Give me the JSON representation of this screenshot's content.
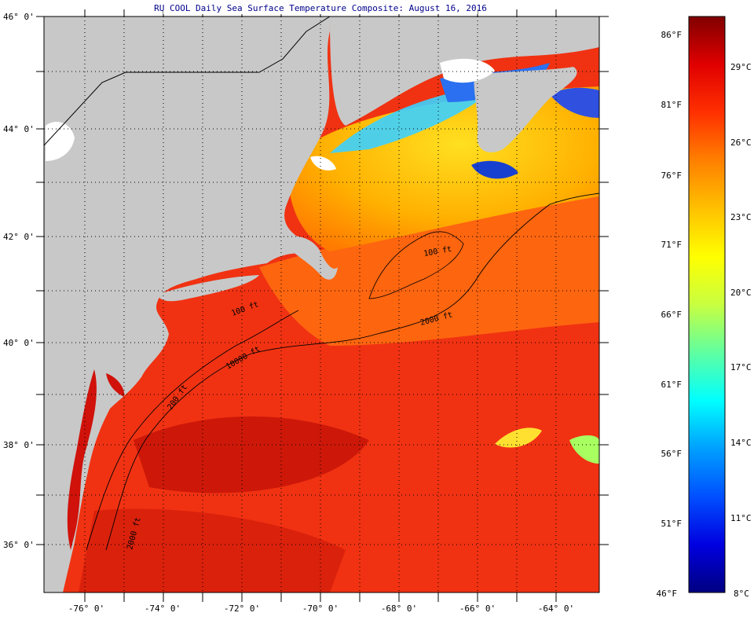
{
  "title": "RU COOL Daily Sea Surface Temperature Composite: August 16, 2016",
  "lat_labels": [
    "46° 0'",
    "44° 0'",
    "42° 0'",
    "40° 0'",
    "38° 0'",
    "36° 0'"
  ],
  "lon_labels": [
    "-76° 0'",
    "-74° 0'",
    "-72° 0'",
    "-70° 0'",
    "-68° 0'",
    "-66° 0'",
    "-64° 0'"
  ],
  "contour_labels": [
    "100 ft",
    "200 ft",
    "2000 ft",
    "10000 ft",
    "100 ft",
    "2000 ft"
  ],
  "colorbar": {
    "fahrenheit": [
      "86°F",
      "81°F",
      "76°F",
      "71°F",
      "66°F",
      "61°F",
      "56°F",
      "51°F",
      "46°F"
    ],
    "celsius": [
      "29°C",
      "26°C",
      "23°C",
      "20°C",
      "17°C",
      "14°C",
      "11°C",
      "8°C"
    ],
    "stops": [
      "#000080",
      "#0000e0",
      "#0050ff",
      "#00a0ff",
      "#00ffff",
      "#60ffa0",
      "#c8ff40",
      "#ffff00",
      "#ffc000",
      "#ff8000",
      "#ff3000",
      "#e00000",
      "#800000"
    ]
  },
  "colors": {
    "land": "#c8c8c8",
    "warm_water": "#f03010",
    "hot_water": "#c01008",
    "gulf_of_maine": "#ffd020"
  }
}
